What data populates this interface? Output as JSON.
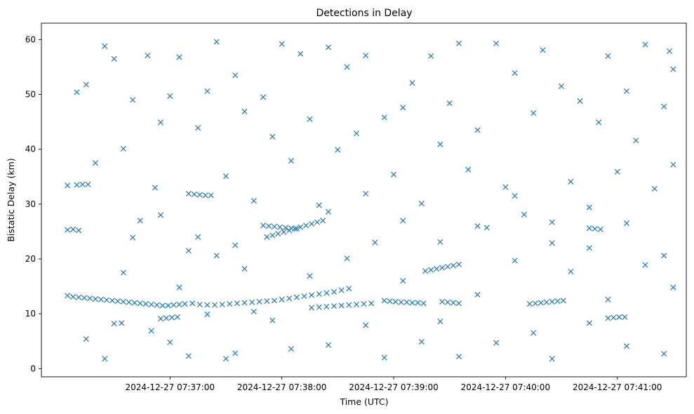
{
  "chart_data": {
    "type": "scatter",
    "title": "Detections in Delay",
    "xlabel": "Time (UTC)",
    "ylabel": "Bistatic Delay (km)",
    "x_unit": "UTC time",
    "xlim": [
      "2024-12-27 07:35:51",
      "2024-12-27 07:41:37"
    ],
    "ylim": [
      -1.5,
      63
    ],
    "x_ticks": [
      "2024-12-27 07:37:00",
      "2024-12-27 07:38:00",
      "2024-12-27 07:39:00",
      "2024-12-27 07:40:00",
      "2024-12-27 07:41:00"
    ],
    "y_ticks": [
      0,
      10,
      20,
      30,
      40,
      50,
      60
    ],
    "marker": "x",
    "color": "#1f77b4",
    "grid": false,
    "legend": "none",
    "series": [
      {
        "points": [
          [
            "2024-12-27 07:36:05",
            13.3
          ],
          [
            "2024-12-27 07:36:08",
            13.1
          ],
          [
            "2024-12-27 07:36:11",
            13.0
          ],
          [
            "2024-12-27 07:36:14",
            12.9
          ],
          [
            "2024-12-27 07:36:17",
            12.8
          ],
          [
            "2024-12-27 07:36:20",
            12.7
          ],
          [
            "2024-12-27 07:36:23",
            12.6
          ],
          [
            "2024-12-27 07:36:26",
            12.5
          ],
          [
            "2024-12-27 07:36:29",
            12.4
          ],
          [
            "2024-12-27 07:36:32",
            12.3
          ],
          [
            "2024-12-27 07:36:35",
            12.2
          ],
          [
            "2024-12-27 07:36:38",
            12.1
          ],
          [
            "2024-12-27 07:36:41",
            12.0
          ],
          [
            "2024-12-27 07:36:44",
            11.9
          ],
          [
            "2024-12-27 07:36:47",
            11.8
          ],
          [
            "2024-12-27 07:36:50",
            11.7
          ],
          [
            "2024-12-27 07:36:53",
            11.6
          ],
          [
            "2024-12-27 07:36:56",
            11.5
          ],
          [
            "2024-12-27 07:36:59",
            11.5
          ],
          [
            "2024-12-27 07:37:02",
            11.6
          ],
          [
            "2024-12-27 07:37:05",
            11.7
          ],
          [
            "2024-12-27 07:37:08",
            11.8
          ],
          [
            "2024-12-27 07:37:12",
            11.9
          ],
          [
            "2024-12-27 07:37:16",
            11.7
          ],
          [
            "2024-12-27 07:37:20",
            11.6
          ],
          [
            "2024-12-27 07:37:24",
            11.6
          ],
          [
            "2024-12-27 07:37:28",
            11.7
          ],
          [
            "2024-12-27 07:37:32",
            11.8
          ],
          [
            "2024-12-27 07:37:36",
            11.9
          ],
          [
            "2024-12-27 07:37:40",
            12.0
          ],
          [
            "2024-12-27 07:37:44",
            12.1
          ],
          [
            "2024-12-27 07:37:48",
            12.2
          ],
          [
            "2024-12-27 07:37:52",
            12.3
          ],
          [
            "2024-12-27 07:37:56",
            12.4
          ],
          [
            "2024-12-27 07:38:00",
            12.6
          ],
          [
            "2024-12-27 07:38:04",
            12.8
          ],
          [
            "2024-12-27 07:38:08",
            13.0
          ],
          [
            "2024-12-27 07:38:12",
            13.2
          ],
          [
            "2024-12-27 07:38:16",
            13.4
          ],
          [
            "2024-12-27 07:38:20",
            13.6
          ],
          [
            "2024-12-27 07:38:24",
            13.8
          ],
          [
            "2024-12-27 07:38:28",
            14.0
          ],
          [
            "2024-12-27 07:38:32",
            14.3
          ],
          [
            "2024-12-27 07:38:36",
            14.6
          ],
          [
            "2024-12-27 07:38:16",
            11.1
          ],
          [
            "2024-12-27 07:38:20",
            11.2
          ],
          [
            "2024-12-27 07:38:24",
            11.3
          ],
          [
            "2024-12-27 07:38:28",
            11.4
          ],
          [
            "2024-12-27 07:38:32",
            11.5
          ],
          [
            "2024-12-27 07:38:36",
            11.6
          ],
          [
            "2024-12-27 07:38:40",
            11.7
          ],
          [
            "2024-12-27 07:38:44",
            11.8
          ],
          [
            "2024-12-27 07:38:48",
            11.9
          ],
          [
            "2024-12-27 07:38:55",
            12.4
          ],
          [
            "2024-12-27 07:38:58",
            12.3
          ],
          [
            "2024-12-27 07:39:01",
            12.2
          ],
          [
            "2024-12-27 07:39:04",
            12.1
          ],
          [
            "2024-12-27 07:39:07",
            12.1
          ],
          [
            "2024-12-27 07:39:10",
            12.0
          ],
          [
            "2024-12-27 07:39:13",
            12.0
          ],
          [
            "2024-12-27 07:39:16",
            11.9
          ],
          [
            "2024-12-27 07:39:26",
            12.2
          ],
          [
            "2024-12-27 07:39:29",
            12.1
          ],
          [
            "2024-12-27 07:39:32",
            12.0
          ],
          [
            "2024-12-27 07:39:35",
            11.9
          ],
          [
            "2024-12-27 07:39:17",
            17.8
          ],
          [
            "2024-12-27 07:39:20",
            18.0
          ],
          [
            "2024-12-27 07:39:23",
            18.2
          ],
          [
            "2024-12-27 07:39:26",
            18.4
          ],
          [
            "2024-12-27 07:39:29",
            18.6
          ],
          [
            "2024-12-27 07:39:32",
            18.8
          ],
          [
            "2024-12-27 07:39:35",
            19.0
          ],
          [
            "2024-12-27 07:40:13",
            11.8
          ],
          [
            "2024-12-27 07:40:16",
            11.9
          ],
          [
            "2024-12-27 07:40:19",
            12.0
          ],
          [
            "2024-12-27 07:40:22",
            12.1
          ],
          [
            "2024-12-27 07:40:25",
            12.2
          ],
          [
            "2024-12-27 07:40:28",
            12.3
          ],
          [
            "2024-12-27 07:40:31",
            12.4
          ],
          [
            "2024-12-27 07:37:10",
            31.9
          ],
          [
            "2024-12-27 07:37:13",
            31.8
          ],
          [
            "2024-12-27 07:37:16",
            31.7
          ],
          [
            "2024-12-27 07:37:19",
            31.6
          ],
          [
            "2024-12-27 07:37:22",
            31.6
          ],
          [
            "2024-12-27 07:36:05",
            33.4
          ],
          [
            "2024-12-27 07:36:10",
            33.5
          ],
          [
            "2024-12-27 07:36:13",
            33.6
          ],
          [
            "2024-12-27 07:36:16",
            33.6
          ],
          [
            "2024-12-27 07:36:05",
            25.3
          ],
          [
            "2024-12-27 07:36:08",
            25.4
          ],
          [
            "2024-12-27 07:36:11",
            25.2
          ],
          [
            "2024-12-27 07:37:50",
            26.1
          ],
          [
            "2024-12-27 07:37:53",
            26.0
          ],
          [
            "2024-12-27 07:37:56",
            25.9
          ],
          [
            "2024-12-27 07:37:59",
            25.8
          ],
          [
            "2024-12-27 07:38:02",
            25.7
          ],
          [
            "2024-12-27 07:38:05",
            25.6
          ],
          [
            "2024-12-27 07:38:08",
            25.5
          ],
          [
            "2024-12-27 07:37:52",
            24.0
          ],
          [
            "2024-12-27 07:37:55",
            24.3
          ],
          [
            "2024-12-27 07:37:58",
            24.6
          ],
          [
            "2024-12-27 07:38:01",
            24.9
          ],
          [
            "2024-12-27 07:38:04",
            25.2
          ],
          [
            "2024-12-27 07:38:07",
            25.5
          ],
          [
            "2024-12-27 07:38:10",
            25.8
          ],
          [
            "2024-12-27 07:38:13",
            26.1
          ],
          [
            "2024-12-27 07:38:16",
            26.4
          ],
          [
            "2024-12-27 07:38:19",
            26.7
          ],
          [
            "2024-12-27 07:38:22",
            27.0
          ],
          [
            "2024-12-27 07:36:55",
            9.1
          ],
          [
            "2024-12-27 07:36:58",
            9.2
          ],
          [
            "2024-12-27 07:37:01",
            9.3
          ],
          [
            "2024-12-27 07:37:04",
            9.4
          ],
          [
            "2024-12-27 07:40:55",
            9.2
          ],
          [
            "2024-12-27 07:40:58",
            9.3
          ],
          [
            "2024-12-27 07:41:01",
            9.4
          ],
          [
            "2024-12-27 07:41:04",
            9.4
          ],
          [
            "2024-12-27 07:40:45",
            25.6
          ],
          [
            "2024-12-27 07:40:48",
            25.5
          ],
          [
            "2024-12-27 07:40:51",
            25.4
          ],
          [
            "2024-12-27 07:36:30",
            8.2
          ],
          [
            "2024-12-27 07:36:34",
            8.3
          ],
          [
            "2024-12-27 07:37:05",
            14.8
          ],
          [
            "2024-12-27 07:37:20",
            9.9
          ],
          [
            "2024-12-27 07:37:30",
            1.8
          ],
          [
            "2024-12-27 07:37:40",
            18.2
          ],
          [
            "2024-12-27 07:36:10",
            50.4
          ],
          [
            "2024-12-27 07:36:15",
            51.8
          ],
          [
            "2024-12-27 07:36:20",
            37.5
          ],
          [
            "2024-12-27 07:36:25",
            58.8
          ],
          [
            "2024-12-27 07:36:30",
            56.5
          ],
          [
            "2024-12-27 07:36:35",
            40.1
          ],
          [
            "2024-12-27 07:36:40",
            49.0
          ],
          [
            "2024-12-27 07:36:44",
            27.0
          ],
          [
            "2024-12-27 07:36:48",
            57.1
          ],
          [
            "2024-12-27 07:36:52",
            33.0
          ],
          [
            "2024-12-27 07:36:55",
            44.9
          ],
          [
            "2024-12-27 07:37:00",
            49.7
          ],
          [
            "2024-12-27 07:37:05",
            56.8
          ],
          [
            "2024-12-27 07:37:10",
            21.5
          ],
          [
            "2024-12-27 07:37:15",
            43.9
          ],
          [
            "2024-12-27 07:37:20",
            50.6
          ],
          [
            "2024-12-27 07:37:25",
            59.6
          ],
          [
            "2024-12-27 07:37:30",
            35.1
          ],
          [
            "2024-12-27 07:37:35",
            53.5
          ],
          [
            "2024-12-27 07:37:40",
            46.9
          ],
          [
            "2024-12-27 07:37:45",
            30.6
          ],
          [
            "2024-12-27 07:37:50",
            49.5
          ],
          [
            "2024-12-27 07:37:55",
            42.3
          ],
          [
            "2024-12-27 07:38:00",
            59.2
          ],
          [
            "2024-12-27 07:38:05",
            37.9
          ],
          [
            "2024-12-27 07:38:10",
            57.4
          ],
          [
            "2024-12-27 07:38:15",
            45.5
          ],
          [
            "2024-12-27 07:38:20",
            29.8
          ],
          [
            "2024-12-27 07:38:25",
            58.6
          ],
          [
            "2024-12-27 07:38:30",
            39.9
          ],
          [
            "2024-12-27 07:38:35",
            55.0
          ],
          [
            "2024-12-27 07:38:40",
            42.9
          ],
          [
            "2024-12-27 07:38:45",
            57.1
          ],
          [
            "2024-12-27 07:38:50",
            23.0
          ],
          [
            "2024-12-27 07:38:55",
            45.8
          ],
          [
            "2024-12-27 07:39:00",
            35.4
          ],
          [
            "2024-12-27 07:39:05",
            47.6
          ],
          [
            "2024-12-27 07:39:10",
            52.1
          ],
          [
            "2024-12-27 07:39:15",
            30.1
          ],
          [
            "2024-12-27 07:39:20",
            57.0
          ],
          [
            "2024-12-27 07:39:25",
            40.9
          ],
          [
            "2024-12-27 07:39:30",
            48.4
          ],
          [
            "2024-12-27 07:39:35",
            59.3
          ],
          [
            "2024-12-27 07:39:40",
            36.3
          ],
          [
            "2024-12-27 07:39:45",
            43.5
          ],
          [
            "2024-12-27 07:39:50",
            25.7
          ],
          [
            "2024-12-27 07:39:55",
            59.3
          ],
          [
            "2024-12-27 07:40:00",
            33.1
          ],
          [
            "2024-12-27 07:40:05",
            53.9
          ],
          [
            "2024-12-27 07:40:10",
            28.1
          ],
          [
            "2024-12-27 07:40:15",
            46.6
          ],
          [
            "2024-12-27 07:40:20",
            58.1
          ],
          [
            "2024-12-27 07:40:25",
            22.9
          ],
          [
            "2024-12-27 07:40:30",
            51.5
          ],
          [
            "2024-12-27 07:40:35",
            34.1
          ],
          [
            "2024-12-27 07:40:40",
            48.8
          ],
          [
            "2024-12-27 07:40:45",
            29.4
          ],
          [
            "2024-12-27 07:40:50",
            44.9
          ],
          [
            "2024-12-27 07:40:55",
            57.0
          ],
          [
            "2024-12-27 07:41:00",
            35.9
          ],
          [
            "2024-12-27 07:41:05",
            50.6
          ],
          [
            "2024-12-27 07:41:10",
            41.6
          ],
          [
            "2024-12-27 07:41:15",
            59.1
          ],
          [
            "2024-12-27 07:41:20",
            32.8
          ],
          [
            "2024-12-27 07:41:25",
            47.8
          ],
          [
            "2024-12-27 07:41:28",
            57.9
          ],
          [
            "2024-12-27 07:41:30",
            54.6
          ],
          [
            "2024-12-27 07:36:15",
            5.4
          ],
          [
            "2024-12-27 07:36:25",
            1.8
          ],
          [
            "2024-12-27 07:36:35",
            17.5
          ],
          [
            "2024-12-27 07:36:50",
            6.9
          ],
          [
            "2024-12-27 07:37:00",
            4.8
          ],
          [
            "2024-12-27 07:37:10",
            2.3
          ],
          [
            "2024-12-27 07:37:25",
            20.6
          ],
          [
            "2024-12-27 07:37:35",
            2.8
          ],
          [
            "2024-12-27 07:37:45",
            10.4
          ],
          [
            "2024-12-27 07:37:55",
            8.8
          ],
          [
            "2024-12-27 07:38:05",
            3.6
          ],
          [
            "2024-12-27 07:38:15",
            16.9
          ],
          [
            "2024-12-27 07:38:25",
            4.3
          ],
          [
            "2024-12-27 07:38:35",
            20.1
          ],
          [
            "2024-12-27 07:38:45",
            7.9
          ],
          [
            "2024-12-27 07:38:55",
            2.0
          ],
          [
            "2024-12-27 07:39:05",
            16.0
          ],
          [
            "2024-12-27 07:39:15",
            4.9
          ],
          [
            "2024-12-27 07:39:25",
            8.6
          ],
          [
            "2024-12-27 07:39:35",
            2.2
          ],
          [
            "2024-12-27 07:39:45",
            13.5
          ],
          [
            "2024-12-27 07:39:55",
            4.7
          ],
          [
            "2024-12-27 07:40:05",
            19.7
          ],
          [
            "2024-12-27 07:40:15",
            6.5
          ],
          [
            "2024-12-27 07:40:25",
            1.8
          ],
          [
            "2024-12-27 07:40:35",
            17.7
          ],
          [
            "2024-12-27 07:40:45",
            8.3
          ],
          [
            "2024-12-27 07:40:55",
            12.6
          ],
          [
            "2024-12-27 07:41:05",
            4.1
          ],
          [
            "2024-12-27 07:41:15",
            18.9
          ],
          [
            "2024-12-27 07:41:25",
            2.7
          ],
          [
            "2024-12-27 07:41:30",
            14.8
          ],
          [
            "2024-12-27 07:36:40",
            23.9
          ],
          [
            "2024-12-27 07:36:55",
            28.0
          ],
          [
            "2024-12-27 07:37:15",
            24.0
          ],
          [
            "2024-12-27 07:37:35",
            22.5
          ],
          [
            "2024-12-27 07:38:25",
            28.6
          ],
          [
            "2024-12-27 07:38:45",
            31.9
          ],
          [
            "2024-12-27 07:39:05",
            27.0
          ],
          [
            "2024-12-27 07:39:25",
            23.1
          ],
          [
            "2024-12-27 07:39:45",
            26.0
          ],
          [
            "2024-12-27 07:40:05",
            31.5
          ],
          [
            "2024-12-27 07:40:25",
            26.7
          ],
          [
            "2024-12-27 07:40:45",
            22.0
          ],
          [
            "2024-12-27 07:41:05",
            26.5
          ],
          [
            "2024-12-27 07:41:25",
            20.6
          ],
          [
            "2024-12-27 07:41:30",
            37.2
          ]
        ]
      }
    ]
  }
}
